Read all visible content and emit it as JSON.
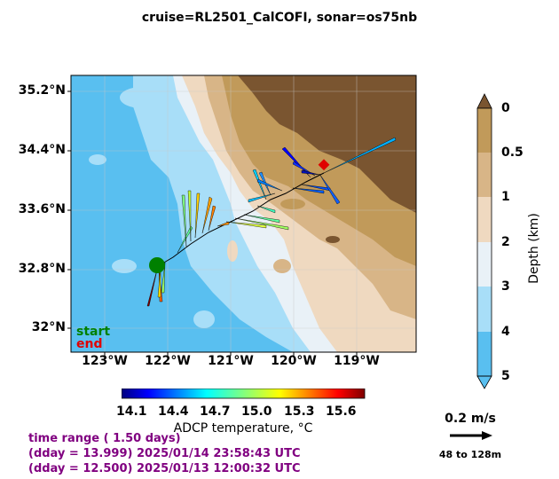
{
  "title": "cruise=RL2501_CalCOFI,   sonar=os75nb",
  "map": {
    "lat_labels": [
      "35.2°N",
      "34.4°N",
      "33.6°N",
      "32.8°N",
      "32°N"
    ],
    "lon_labels": [
      "123°W",
      "122°W",
      "121°W",
      "120°W",
      "119°W"
    ],
    "start_label": "start",
    "end_label": "end",
    "start_color": "#008000",
    "end_color": "#e00000"
  },
  "depth_colorbar": {
    "label": "Depth (km)",
    "ticks": [
      "0",
      "0.5",
      "1",
      "2",
      "3",
      "4",
      "5"
    ],
    "colors": [
      "#c19a5a",
      "#d8b587",
      "#efd9c0",
      "#e9f1f7",
      "#a8def8",
      "#59bff0"
    ]
  },
  "temp_colorbar": {
    "label": "ADCP temperature, °C",
    "ticks": [
      "14.1",
      "14.4",
      "14.7",
      "15.0",
      "15.3",
      "15.6"
    ]
  },
  "scale": {
    "speed_label": "0.2 m/s",
    "depth_range": "48 to 128m"
  },
  "time_range": {
    "line1": "time range ( 1.50 days)",
    "line2": "(dday = 13.999) 2025/01/14 23:58:43 UTC",
    "line3": "(dday = 12.500) 2025/01/13 12:00:32 UTC"
  }
}
